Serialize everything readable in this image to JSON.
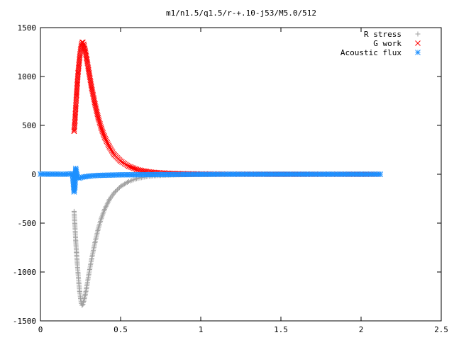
{
  "chart_data": {
    "type": "scatter",
    "title": "m1/n1.5/q1.5/r-+.10-j53/M5.0/512",
    "xlabel": "",
    "ylabel": "",
    "xlim": [
      0,
      2.5
    ],
    "ylim": [
      -1500,
      1500
    ],
    "x_ticks": [
      0,
      0.5,
      1,
      1.5,
      2,
      2.5
    ],
    "x_tick_labels": [
      "0",
      "0.5",
      "1",
      "1.5",
      "2",
      "2.5"
    ],
    "y_ticks": [
      -1500,
      -1000,
      -500,
      0,
      500,
      1000,
      1500
    ],
    "y_tick_labels": [
      "-1500",
      "-1000",
      "-500",
      "0",
      "500",
      "1000",
      "1500"
    ],
    "grid": false,
    "legend_position": "top-right",
    "series": [
      {
        "name": "R stress",
        "marker": "plus",
        "color": "#a0a0a0",
        "x": [
          0.21,
          0.215,
          0.22,
          0.225,
          0.23,
          0.235,
          0.24,
          0.245,
          0.25,
          0.255,
          0.26,
          0.265,
          0.27,
          0.28,
          0.29,
          0.3,
          0.32,
          0.34,
          0.36,
          0.38,
          0.4,
          0.43,
          0.46,
          0.5,
          0.55,
          0.6,
          0.65,
          0.7,
          0.8,
          0.9,
          1.0,
          1.2,
          1.5,
          1.8,
          2.1
        ],
        "y": [
          -380,
          -520,
          -680,
          -800,
          -920,
          -1020,
          -1120,
          -1200,
          -1270,
          -1320,
          -1340,
          -1330,
          -1300,
          -1230,
          -1140,
          -1040,
          -860,
          -700,
          -560,
          -450,
          -360,
          -260,
          -190,
          -125,
          -75,
          -45,
          -28,
          -17,
          -8,
          -4,
          -2,
          0,
          0,
          0,
          0
        ]
      },
      {
        "name": "G work",
        "marker": "cross",
        "color": "#ff0000",
        "x": [
          0.21,
          0.215,
          0.22,
          0.225,
          0.23,
          0.235,
          0.24,
          0.245,
          0.25,
          0.255,
          0.26,
          0.265,
          0.27,
          0.28,
          0.29,
          0.3,
          0.32,
          0.34,
          0.36,
          0.38,
          0.4,
          0.43,
          0.46,
          0.5,
          0.55,
          0.6,
          0.65,
          0.7,
          0.8,
          0.9,
          1.0,
          1.2,
          1.5,
          1.8,
          2.1
        ],
        "y": [
          440,
          540,
          680,
          810,
          930,
          1040,
          1120,
          1200,
          1270,
          1320,
          1350,
          1350,
          1330,
          1260,
          1170,
          1070,
          880,
          720,
          580,
          470,
          380,
          280,
          200,
          135,
          82,
          50,
          32,
          20,
          10,
          5,
          3,
          1,
          0,
          0,
          0
        ]
      },
      {
        "name": "Acoustic flux",
        "marker": "star",
        "color": "#1e90ff",
        "x": [
          0.0,
          0.05,
          0.1,
          0.15,
          0.2,
          0.21,
          0.215,
          0.22,
          0.225,
          0.23,
          0.24,
          0.25,
          0.26,
          0.28,
          0.3,
          0.33,
          0.36,
          0.4,
          0.45,
          0.5,
          0.6,
          0.7,
          0.8,
          0.9,
          1.0,
          1.2,
          1.4,
          1.6,
          1.8,
          2.0,
          2.12
        ],
        "y": [
          2,
          1,
          1,
          0,
          5,
          -180,
          -130,
          60,
          10,
          -30,
          -40,
          -35,
          -30,
          -25,
          -20,
          -15,
          -12,
          -10,
          -8,
          -6,
          -5,
          -4,
          -3,
          -2,
          -1,
          0,
          0,
          0,
          0,
          0,
          0
        ]
      }
    ]
  }
}
